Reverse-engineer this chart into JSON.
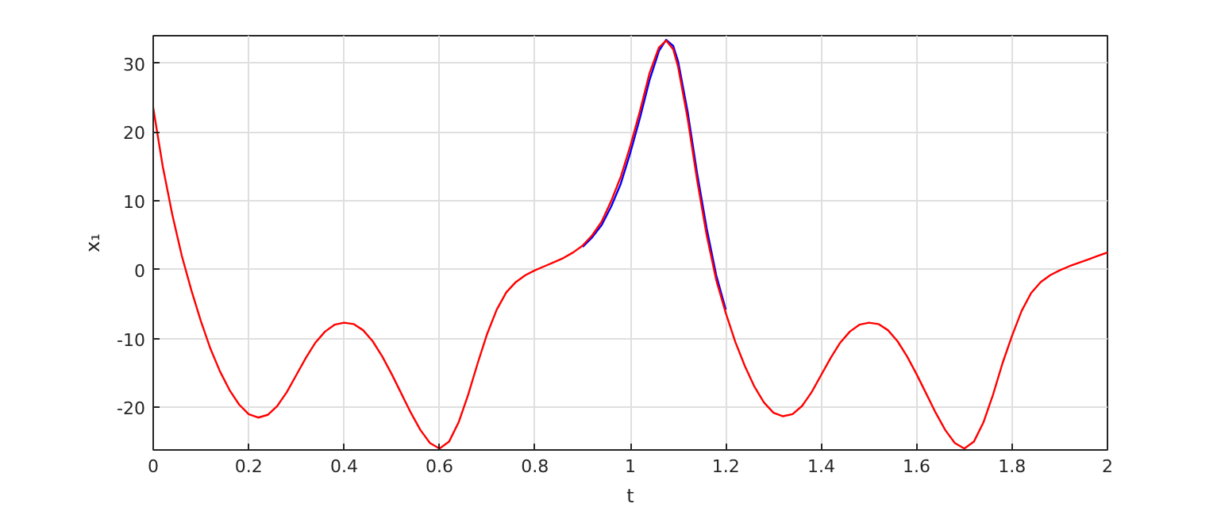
{
  "chart_data": {
    "type": "line",
    "xlabel": "t",
    "ylabel": "x₁",
    "xlim": [
      0,
      2
    ],
    "ylim": [
      -26.2,
      34
    ],
    "xticks": [
      0,
      0.2,
      0.4,
      0.6,
      0.8,
      1,
      1.2,
      1.4,
      1.6,
      1.8,
      2
    ],
    "yticks": [
      -20,
      -10,
      0,
      10,
      20,
      30
    ],
    "grid": true,
    "line_style": "solid",
    "x": [
      0,
      0.02,
      0.04,
      0.06,
      0.08,
      0.1,
      0.12,
      0.14,
      0.16,
      0.18,
      0.2,
      0.22,
      0.24,
      0.26,
      0.28,
      0.3,
      0.32,
      0.34,
      0.36,
      0.38,
      0.4,
      0.42,
      0.44,
      0.46,
      0.48,
      0.5,
      0.52,
      0.54,
      0.56,
      0.58,
      0.6,
      0.62,
      0.64,
      0.66,
      0.68,
      0.7,
      0.72,
      0.74,
      0.76,
      0.78,
      0.8,
      0.82,
      0.84,
      0.86,
      0.88,
      0.9,
      0.92,
      0.94,
      0.96,
      0.98,
      1.0,
      1.02,
      1.04,
      1.06,
      1.075,
      1.09,
      1.1,
      1.12,
      1.14,
      1.16,
      1.18,
      1.2,
      1.22,
      1.24,
      1.26,
      1.28,
      1.3,
      1.32,
      1.34,
      1.36,
      1.38,
      1.4,
      1.42,
      1.44,
      1.46,
      1.48,
      1.5,
      1.52,
      1.54,
      1.56,
      1.58,
      1.6,
      1.62,
      1.64,
      1.66,
      1.68,
      1.7,
      1.72,
      1.74,
      1.76,
      1.78,
      1.8,
      1.82,
      1.84,
      1.86,
      1.88,
      1.9,
      1.92,
      1.94,
      1.96,
      1.98,
      2.0
    ],
    "series": [
      {
        "color": "#0000ff",
        "values": [
          null,
          null,
          null,
          null,
          null,
          null,
          null,
          null,
          null,
          null,
          null,
          null,
          null,
          null,
          null,
          null,
          null,
          null,
          null,
          null,
          null,
          null,
          null,
          null,
          null,
          null,
          null,
          null,
          null,
          null,
          null,
          null,
          null,
          null,
          null,
          null,
          null,
          null,
          null,
          null,
          null,
          null,
          null,
          null,
          null,
          3.3,
          4.7,
          6.5,
          9.2,
          12.5,
          17,
          22,
          27.5,
          31.8,
          33.4,
          32.5,
          30.3,
          23,
          14,
          6,
          -0.8,
          -5.8,
          null,
          null,
          null,
          null,
          null,
          null,
          null,
          null,
          null,
          null,
          null,
          null,
          null,
          null,
          null,
          null,
          null,
          null,
          null,
          null,
          null,
          null,
          null,
          null,
          null,
          null,
          null,
          null,
          null,
          null,
          null,
          null,
          null,
          null,
          null,
          null,
          null,
          null,
          null,
          null
        ]
      },
      {
        "color": "#ff0000",
        "values": [
          23.5,
          15,
          8,
          2,
          -3,
          -7.5,
          -11.5,
          -14.8,
          -17.5,
          -19.6,
          -21,
          -21.5,
          -21.1,
          -19.8,
          -17.8,
          -15.3,
          -12.8,
          -10.6,
          -9,
          -8,
          -7.7,
          -7.9,
          -8.8,
          -10.4,
          -12.6,
          -15.2,
          -18,
          -20.8,
          -23.3,
          -25.2,
          -26,
          -25,
          -22.2,
          -18.2,
          -13.6,
          -9.3,
          -5.8,
          -3.3,
          -1.8,
          -0.8,
          -0.1,
          0.5,
          1.1,
          1.7,
          2.5,
          3.5,
          5,
          7,
          10,
          13.5,
          18,
          23,
          28.5,
          32.3,
          33.3,
          32,
          29.5,
          22,
          13,
          5,
          -1.5,
          -6.3,
          -10.5,
          -14,
          -17,
          -19.3,
          -20.8,
          -21.3,
          -21,
          -19.8,
          -17.8,
          -15.3,
          -12.8,
          -10.6,
          -9,
          -8,
          -7.7,
          -7.9,
          -8.8,
          -10.4,
          -12.6,
          -15.2,
          -18,
          -20.8,
          -23.3,
          -25.2,
          -26,
          -25,
          -22.2,
          -18.2,
          -13.6,
          -9.6,
          -6,
          -3.4,
          -1.8,
          -0.8,
          -0.1,
          0.5,
          1,
          1.5,
          2,
          2.5
        ]
      }
    ]
  }
}
